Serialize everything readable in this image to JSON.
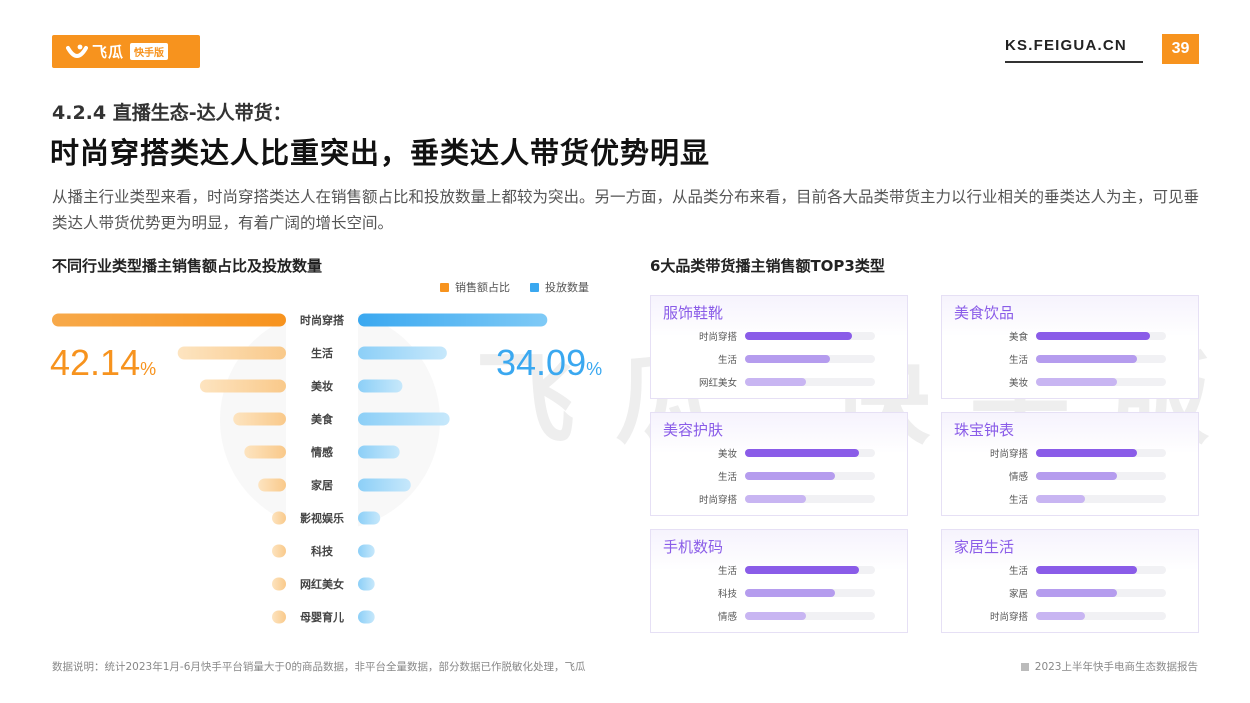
{
  "header": {
    "logo_text": "飞瓜",
    "logo_badge": "快手版",
    "site": "KS.FEIGUA.CN",
    "page_number": "39",
    "accent": "#f7931e"
  },
  "section_label": "4.2.4 直播生态-达人带货：",
  "headline": "时尚穿搭类达人比重突出，垂类达人带货优势明显",
  "intro": "从播主行业类型来看，时尚穿搭类达人在销售额占比和投放数量上都较为突出。另一方面，从品类分布来看，目前各大品类带货主力以行业相关的垂类达人为主，可见垂类达人带货优势更为明显，有着广阔的增长空间。",
  "watermark": "飞瓜 快手版",
  "left_chart_title": "不同行业类型播主销售额占比及投放数量",
  "right_title": "6大品类带货播主销售额TOP3类型",
  "big_left": {
    "value": "42.14",
    "unit": "%"
  },
  "big_right": {
    "value": "34.09",
    "unit": "%"
  },
  "chart_data": [
    {
      "type": "bar",
      "title": "不同行业类型播主销售额占比及投放数量",
      "categories": [
        "时尚穿搭",
        "生活",
        "美妆",
        "美食",
        "情感",
        "家居",
        "影视娱乐",
        "科技",
        "网红美女",
        "母婴育儿"
      ],
      "series": [
        {
          "name": "销售额占比",
          "color": "#f7931e",
          "values": [
            42.14,
            19.5,
            15.5,
            9.5,
            7.5,
            5.0,
            2.5,
            2.5,
            2.5,
            2.5
          ]
        },
        {
          "name": "投放数量",
          "color": "#3aa8f0",
          "values": [
            34.09,
            16.0,
            8.0,
            16.5,
            7.5,
            9.5,
            4.0,
            3.0,
            3.0,
            3.0
          ]
        }
      ],
      "legend": "top-right",
      "grid": false
    },
    {
      "type": "bar",
      "title": "6大品类带货播主销售额TOP3类型",
      "panels": [
        {
          "name": "服饰鞋靴",
          "rows": [
            {
              "label": "时尚穿搭",
              "value": 0.82
            },
            {
              "label": "生活",
              "value": 0.65
            },
            {
              "label": "网红美女",
              "value": 0.47
            }
          ]
        },
        {
          "name": "美食饮品",
          "rows": [
            {
              "label": "美食",
              "value": 0.88
            },
            {
              "label": "生活",
              "value": 0.78
            },
            {
              "label": "美妆",
              "value": 0.62
            }
          ]
        },
        {
          "name": "美容护肤",
          "rows": [
            {
              "label": "美妆",
              "value": 0.88
            },
            {
              "label": "生活",
              "value": 0.69
            },
            {
              "label": "时尚穿搭",
              "value": 0.47
            }
          ]
        },
        {
          "name": "珠宝钟表",
          "rows": [
            {
              "label": "时尚穿搭",
              "value": 0.78
            },
            {
              "label": "情感",
              "value": 0.62
            },
            {
              "label": "生活",
              "value": 0.38
            }
          ]
        },
        {
          "name": "手机数码",
          "rows": [
            {
              "label": "生活",
              "value": 0.88
            },
            {
              "label": "科技",
              "value": 0.69
            },
            {
              "label": "情感",
              "value": 0.47
            }
          ]
        },
        {
          "name": "家居生活",
          "rows": [
            {
              "label": "生活",
              "value": 0.78
            },
            {
              "label": "家居",
              "value": 0.62
            },
            {
              "label": "时尚穿搭",
              "value": 0.38
            }
          ]
        }
      ],
      "colors": [
        "#8a5ce8",
        "#b59cee",
        "#c8b5f2"
      ]
    }
  ],
  "footnote": "数据说明：统计2023年1月-6月快手平台销量大于0的商品数据，非平台全量数据，部分数据已作脱敏化处理，飞瓜",
  "report_name": "2023上半年快手电商生态数据报告"
}
